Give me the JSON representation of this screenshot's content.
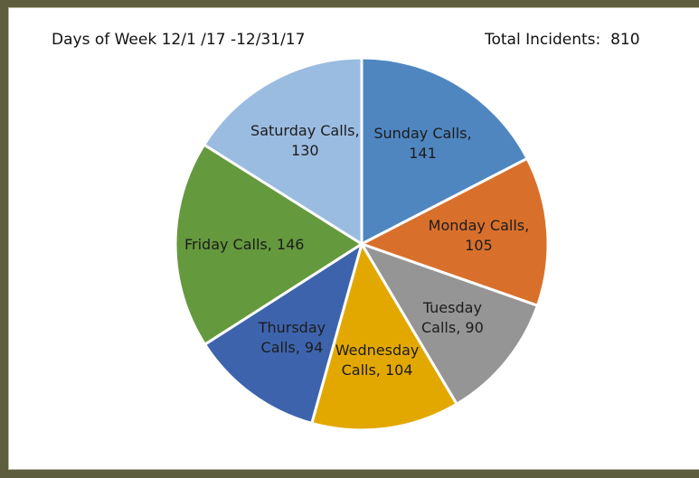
{
  "chart_data": {
    "type": "pie",
    "title": "Days of Week 12/1 /17 -12/31/17",
    "total_label": "Total Incidents:",
    "total": 810,
    "values": [
      141,
      105,
      90,
      104,
      94,
      146,
      130
    ],
    "value_labels": [
      "Sunday Calls,\n141",
      "Monday Calls,\n105",
      "Tuesday\nCalls, 90",
      "Wednesday\nCalls, 104",
      "Thursday\nCalls, 94",
      "Friday Calls, 146",
      "Saturday Calls,\n130"
    ],
    "colors": [
      "#4f86c0",
      "#d8702c",
      "#959595",
      "#e3a800",
      "#3d63ad",
      "#65993d",
      "#9bbce1"
    ]
  }
}
